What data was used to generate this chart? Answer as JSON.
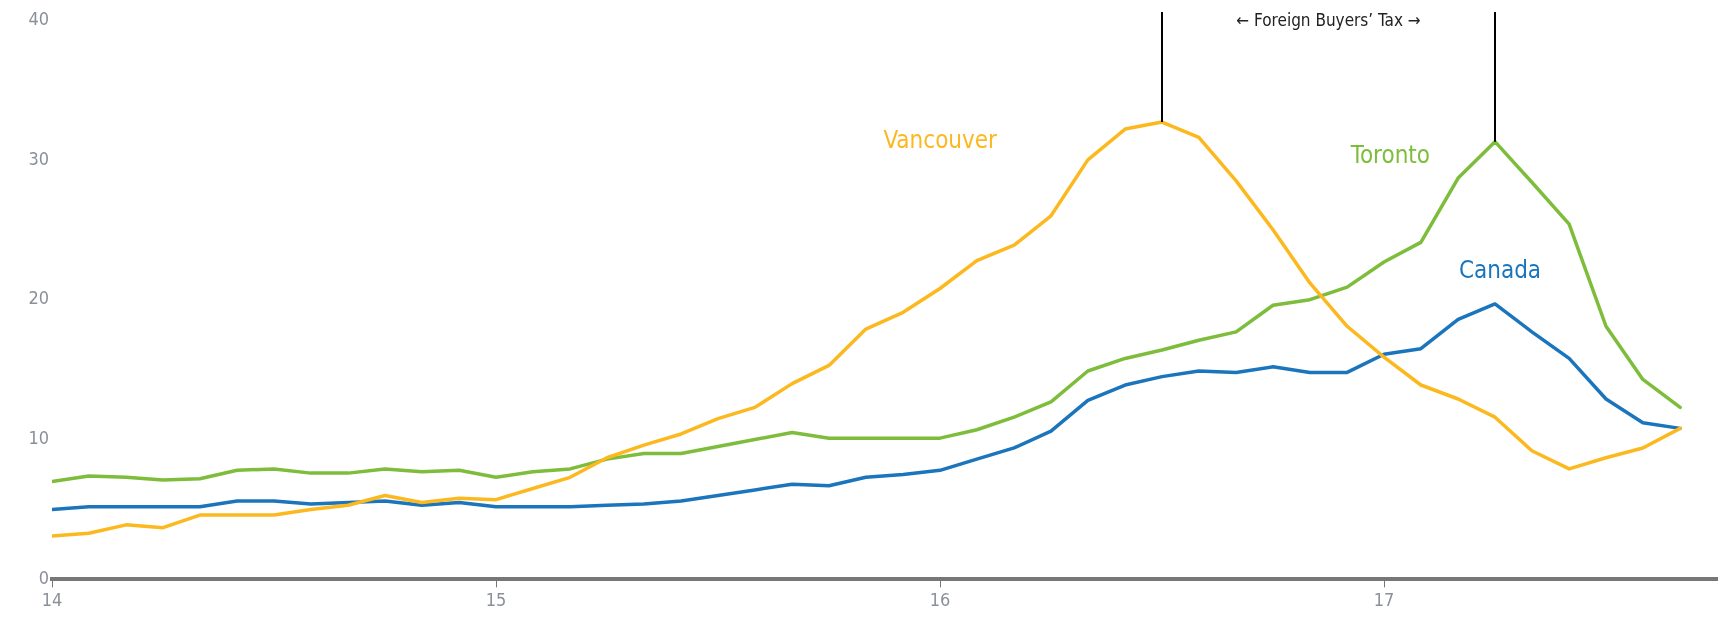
{
  "chart_data": {
    "type": "line",
    "x": [
      14,
      14.083,
      14.167,
      14.25,
      14.333,
      14.417,
      14.5,
      14.583,
      14.667,
      14.75,
      14.833,
      14.917,
      15,
      15.083,
      15.167,
      15.25,
      15.333,
      15.417,
      15.5,
      15.583,
      15.667,
      15.75,
      15.833,
      15.917,
      16,
      16.083,
      16.167,
      16.25,
      16.333,
      16.417,
      16.5,
      16.583,
      16.667,
      16.75,
      16.833,
      16.917,
      17,
      17.083,
      17.167,
      17.25,
      17.333,
      17.417,
      17.5,
      17.583,
      17.667
    ],
    "series": [
      {
        "name": "Vancouver",
        "color": "#fbb91f",
        "values": [
          3.1,
          3.3,
          3.9,
          3.7,
          4.6,
          4.6,
          4.6,
          5.0,
          5.3,
          6.0,
          5.5,
          5.8,
          5.7,
          6.5,
          7.3,
          8.7,
          9.6,
          10.4,
          11.5,
          12.3,
          14.0,
          15.3,
          17.9,
          19.1,
          20.8,
          22.8,
          23.9,
          26.0,
          30.0,
          32.2,
          32.7,
          31.6,
          28.5,
          25.0,
          21.2,
          18.1,
          15.9,
          13.9,
          12.9,
          11.6,
          9.2,
          7.9,
          8.7,
          9.4,
          10.8
        ]
      },
      {
        "name": "Toronto",
        "color": "#7dbd3b",
        "values": [
          7.0,
          7.4,
          7.3,
          7.1,
          7.2,
          7.8,
          7.9,
          7.6,
          7.6,
          7.9,
          7.7,
          7.8,
          7.3,
          7.7,
          7.9,
          8.6,
          9.0,
          9.0,
          9.5,
          10.0,
          10.5,
          10.1,
          10.1,
          10.1,
          10.1,
          10.7,
          11.6,
          12.7,
          14.9,
          15.8,
          16.4,
          17.1,
          17.7,
          19.6,
          20.0,
          20.9,
          22.7,
          24.1,
          28.7,
          31.3,
          28.4,
          25.4,
          18.1,
          14.3,
          12.3
        ]
      },
      {
        "name": "Canada",
        "color": "#1b75bc",
        "values": [
          5.0,
          5.2,
          5.2,
          5.2,
          5.2,
          5.6,
          5.6,
          5.4,
          5.5,
          5.6,
          5.3,
          5.5,
          5.2,
          5.2,
          5.2,
          5.3,
          5.4,
          5.6,
          6.0,
          6.4,
          6.8,
          6.7,
          7.3,
          7.5,
          7.8,
          8.6,
          9.4,
          10.6,
          12.8,
          13.9,
          14.5,
          14.9,
          14.8,
          15.2,
          14.8,
          14.8,
          16.1,
          16.5,
          18.6,
          19.7,
          17.7,
          15.8,
          12.9,
          11.2,
          10.8
        ]
      }
    ],
    "xlim": [
      14,
      17.75
    ],
    "xticks": [
      14,
      15,
      16,
      17
    ],
    "ylim": [
      0,
      40
    ],
    "yticks": [
      0,
      10,
      20,
      30,
      40
    ],
    "grid": false,
    "legend": false,
    "marker": "none",
    "line_style": "solid",
    "ref_lines": [
      {
        "axis": "x",
        "value": 16.5,
        "color": "#000000"
      },
      {
        "axis": "x",
        "value": 17.25,
        "color": "#000000"
      }
    ],
    "annotations": [
      "← Foreign Buyers’ Tax →"
    ]
  }
}
